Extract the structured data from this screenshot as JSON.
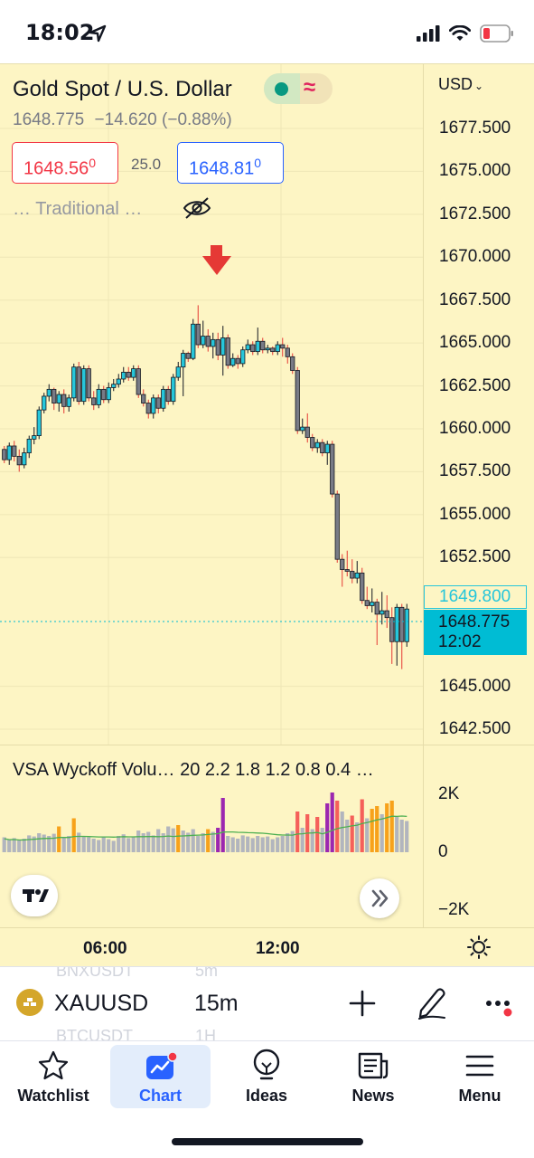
{
  "status_bar": {
    "time": "18:02"
  },
  "chart": {
    "title": "Gold Spot / U.S. Dollar",
    "last": "1648.775",
    "change": "−14.620 (−0.88%)",
    "bid": "1648.56",
    "bid_sup": "0",
    "spread": "25.0",
    "ask": "1648.81",
    "ask_sup": "0",
    "pivot_label": "…  Traditional …",
    "currency": "USD",
    "price_axis": [
      "1677.500",
      "1675.000",
      "1672.500",
      "1670.000",
      "1667.500",
      "1665.000",
      "1662.500",
      "1660.000",
      "1657.500",
      "1655.000",
      "1652.500",
      "1645.000",
      "1642.500"
    ],
    "line_tag": "1649.800",
    "current_tag": "1648.775",
    "countdown": "12:02",
    "time_axis": [
      "06:00",
      "12:00"
    ],
    "colors": {
      "up": "#26c6da",
      "down": "#787b86",
      "arrow": "#e53935",
      "background": "#fdf5c4"
    }
  },
  "volume": {
    "title": "VSA Wyckoff Volu… 20 2.2 1.8 1.2 0.8 0.4 …",
    "axis": [
      "2K",
      "0",
      "−2K"
    ]
  },
  "symbol_bar": {
    "symbol": "XAUUSD",
    "interval": "15m",
    "ghost_top_symbol": "BNXUSDT",
    "ghost_top_interval": "5m",
    "ghost_bottom_symbol": "BTCUSDT",
    "ghost_bottom_interval": "1H"
  },
  "tabs": [
    {
      "label": "Watchlist"
    },
    {
      "label": "Chart"
    },
    {
      "label": "Ideas"
    },
    {
      "label": "News"
    },
    {
      "label": "Menu"
    }
  ],
  "candles": [
    [
      1658.8,
      1658.2,
      1659.0,
      1658.0
    ],
    [
      1658.2,
      1659.0,
      1659.2,
      1657.9
    ],
    [
      1659.0,
      1658.4,
      1659.3,
      1658.1
    ],
    [
      1658.4,
      1657.9,
      1658.8,
      1657.5
    ],
    [
      1657.9,
      1658.6,
      1658.9,
      1657.7
    ],
    [
      1658.6,
      1659.4,
      1659.6,
      1658.3
    ],
    [
      1659.4,
      1659.6,
      1660.1,
      1659.1
    ],
    [
      1659.6,
      1661.1,
      1661.3,
      1659.4
    ],
    [
      1661.1,
      1661.9,
      1662.1,
      1660.9
    ],
    [
      1661.9,
      1662.3,
      1662.6,
      1661.6
    ],
    [
      1662.3,
      1661.5,
      1662.4,
      1661.1
    ],
    [
      1661.5,
      1662.0,
      1662.2,
      1661.0
    ],
    [
      1662.0,
      1661.3,
      1662.3,
      1660.9
    ],
    [
      1661.3,
      1661.8,
      1662.0,
      1661.0
    ],
    [
      1661.8,
      1663.6,
      1663.8,
      1661.6
    ],
    [
      1663.6,
      1661.6,
      1663.9,
      1661.4
    ],
    [
      1661.6,
      1663.5,
      1663.7,
      1661.4
    ],
    [
      1663.5,
      1661.8,
      1663.7,
      1661.6
    ],
    [
      1661.8,
      1661.4,
      1662.2,
      1661.1
    ],
    [
      1661.4,
      1662.3,
      1662.6,
      1661.2
    ],
    [
      1662.3,
      1661.7,
      1662.5,
      1661.5
    ],
    [
      1661.7,
      1662.4,
      1662.7,
      1661.5
    ],
    [
      1662.4,
      1662.6,
      1662.9,
      1662.2
    ],
    [
      1662.6,
      1662.9,
      1663.2,
      1662.4
    ],
    [
      1662.9,
      1663.3,
      1663.6,
      1662.7
    ],
    [
      1663.3,
      1663.0,
      1663.6,
      1662.8
    ],
    [
      1663.0,
      1663.5,
      1663.7,
      1662.8
    ],
    [
      1663.5,
      1662.0,
      1663.7,
      1661.8
    ],
    [
      1662.0,
      1661.5,
      1662.3,
      1661.3
    ],
    [
      1661.5,
      1660.9,
      1661.7,
      1660.6
    ],
    [
      1660.9,
      1661.8,
      1662.0,
      1660.6
    ],
    [
      1661.8,
      1661.2,
      1662.0,
      1660.9
    ],
    [
      1661.2,
      1662.3,
      1662.5,
      1661.0
    ],
    [
      1662.3,
      1661.6,
      1662.5,
      1661.4
    ],
    [
      1661.6,
      1663.0,
      1663.2,
      1661.4
    ],
    [
      1663.0,
      1663.6,
      1663.9,
      1662.8
    ],
    [
      1663.6,
      1664.4,
      1664.6,
      1661.9
    ],
    [
      1664.4,
      1664.1,
      1664.5,
      1663.9
    ],
    [
      1664.1,
      1666.1,
      1666.4,
      1664.0
    ],
    [
      1666.1,
      1664.9,
      1667.2,
      1664.7
    ],
    [
      1664.9,
      1665.4,
      1666.3,
      1664.7
    ],
    [
      1665.4,
      1664.8,
      1665.8,
      1664.5
    ],
    [
      1664.8,
      1665.2,
      1665.6,
      1664.1
    ],
    [
      1665.2,
      1664.3,
      1665.6,
      1664.0
    ],
    [
      1664.3,
      1665.3,
      1666.0,
      1663.1
    ],
    [
      1665.3,
      1663.7,
      1665.5,
      1663.5
    ],
    [
      1663.7,
      1664.1,
      1664.4,
      1663.6
    ],
    [
      1664.1,
      1663.8,
      1664.3,
      1663.5
    ],
    [
      1663.8,
      1664.6,
      1664.8,
      1663.6
    ],
    [
      1664.6,
      1664.9,
      1665.2,
      1664.4
    ],
    [
      1664.9,
      1664.5,
      1665.1,
      1664.3
    ],
    [
      1664.5,
      1665.1,
      1665.9,
      1664.3
    ],
    [
      1665.1,
      1664.6,
      1665.3,
      1664.4
    ],
    [
      1664.6,
      1664.7,
      1664.9,
      1664.4
    ],
    [
      1664.7,
      1664.5,
      1664.8,
      1664.3
    ],
    [
      1664.5,
      1664.9,
      1665.1,
      1664.3
    ],
    [
      1664.9,
      1664.7,
      1665.3,
      1664.2
    ],
    [
      1664.7,
      1664.2,
      1664.9,
      1663.8
    ],
    [
      1664.2,
      1663.4,
      1664.4,
      1663.2
    ],
    [
      1663.4,
      1659.9,
      1663.6,
      1659.7
    ],
    [
      1659.9,
      1660.1,
      1660.6,
      1659.7
    ],
    [
      1660.1,
      1659.5,
      1660.9,
      1659.2
    ],
    [
      1659.5,
      1658.9,
      1659.7,
      1658.7
    ],
    [
      1658.9,
      1659.2,
      1659.4,
      1658.6
    ],
    [
      1659.2,
      1658.6,
      1659.4,
      1658.4
    ],
    [
      1658.6,
      1659.1,
      1659.3,
      1657.9
    ],
    [
      1659.1,
      1656.2,
      1659.3,
      1656.0
    ],
    [
      1656.2,
      1652.4,
      1656.4,
      1652.2
    ],
    [
      1652.4,
      1651.8,
      1652.7,
      1650.8
    ],
    [
      1651.8,
      1651.7,
      1652.9,
      1651.4
    ],
    [
      1651.7,
      1651.3,
      1652.4,
      1651.0
    ],
    [
      1651.3,
      1651.6,
      1652.3,
      1651.0
    ],
    [
      1651.6,
      1650.0,
      1651.9,
      1649.8
    ],
    [
      1650.0,
      1649.7,
      1650.8,
      1649.5
    ],
    [
      1649.7,
      1649.9,
      1650.7,
      1649.3
    ],
    [
      1649.9,
      1649.2,
      1650.1,
      1647.4
    ],
    [
      1649.2,
      1649.4,
      1650.5,
      1648.6
    ],
    [
      1649.4,
      1649.0,
      1650.3,
      1648.4
    ],
    [
      1649.0,
      1647.6,
      1649.6,
      1646.3
    ],
    [
      1647.6,
      1649.6,
      1649.8,
      1646.2
    ],
    [
      1649.6,
      1647.6,
      1649.8,
      1646.0
    ],
    [
      1647.6,
      1649.5,
      1649.8,
      1647.3
    ]
  ],
  "volumes": [
    [
      0.55,
      "g"
    ],
    [
      0.48,
      "g"
    ],
    [
      0.52,
      "g"
    ],
    [
      0.45,
      "g"
    ],
    [
      0.5,
      "g"
    ],
    [
      0.62,
      "g"
    ],
    [
      0.58,
      "g"
    ],
    [
      0.7,
      "g"
    ],
    [
      0.65,
      "g"
    ],
    [
      0.6,
      "g"
    ],
    [
      0.68,
      "g"
    ],
    [
      0.95,
      "o"
    ],
    [
      0.55,
      "g"
    ],
    [
      0.6,
      "g"
    ],
    [
      1.25,
      "o"
    ],
    [
      0.72,
      "g"
    ],
    [
      0.6,
      "g"
    ],
    [
      0.55,
      "g"
    ],
    [
      0.5,
      "g"
    ],
    [
      0.45,
      "g"
    ],
    [
      0.55,
      "g"
    ],
    [
      0.48,
      "g"
    ],
    [
      0.42,
      "g"
    ],
    [
      0.6,
      "g"
    ],
    [
      0.66,
      "g"
    ],
    [
      0.52,
      "g"
    ],
    [
      0.58,
      "g"
    ],
    [
      0.8,
      "g"
    ],
    [
      0.7,
      "g"
    ],
    [
      0.75,
      "g"
    ],
    [
      0.62,
      "g"
    ],
    [
      0.85,
      "g"
    ],
    [
      0.7,
      "g"
    ],
    [
      0.95,
      "g"
    ],
    [
      0.88,
      "g"
    ],
    [
      1.0,
      "o"
    ],
    [
      0.8,
      "g"
    ],
    [
      0.72,
      "g"
    ],
    [
      0.85,
      "g"
    ],
    [
      0.6,
      "g"
    ],
    [
      0.7,
      "g"
    ],
    [
      0.85,
      "o"
    ],
    [
      0.75,
      "g"
    ],
    [
      0.9,
      "p"
    ],
    [
      2.0,
      "p"
    ],
    [
      0.6,
      "g"
    ],
    [
      0.55,
      "g"
    ],
    [
      0.5,
      "g"
    ],
    [
      0.62,
      "g"
    ],
    [
      0.58,
      "g"
    ],
    [
      0.52,
      "g"
    ],
    [
      0.6,
      "g"
    ],
    [
      0.55,
      "g"
    ],
    [
      0.58,
      "g"
    ],
    [
      0.48,
      "g"
    ],
    [
      0.55,
      "g"
    ],
    [
      0.6,
      "g"
    ],
    [
      0.7,
      "g"
    ],
    [
      0.78,
      "g"
    ],
    [
      1.5,
      "r"
    ],
    [
      0.9,
      "g"
    ],
    [
      1.4,
      "r"
    ],
    [
      0.85,
      "g"
    ],
    [
      1.3,
      "r"
    ],
    [
      0.9,
      "g"
    ],
    [
      1.8,
      "p"
    ],
    [
      2.2,
      "p"
    ],
    [
      1.9,
      "r"
    ],
    [
      1.5,
      "g"
    ],
    [
      1.2,
      "g"
    ],
    [
      1.35,
      "r"
    ],
    [
      1.1,
      "g"
    ],
    [
      1.95,
      "r"
    ],
    [
      1.25,
      "g"
    ],
    [
      1.6,
      "o"
    ],
    [
      1.7,
      "o"
    ],
    [
      1.4,
      "g"
    ],
    [
      1.8,
      "o"
    ],
    [
      1.9,
      "o"
    ],
    [
      1.3,
      "g"
    ],
    [
      1.2,
      "g"
    ],
    [
      1.15,
      "g"
    ]
  ]
}
